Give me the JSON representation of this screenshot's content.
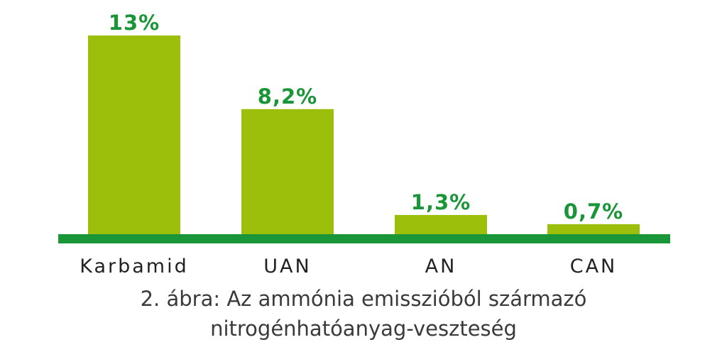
{
  "chart_data": {
    "type": "bar",
    "categories": [
      "Karbamid",
      "UAN",
      "AN",
      "CAN"
    ],
    "values": [
      13,
      8.2,
      1.3,
      0.7
    ],
    "value_labels": [
      "13%",
      "8,2%",
      "1,3%",
      "0,7%"
    ],
    "ylim": [
      0,
      13
    ],
    "grid": false,
    "legend": "none",
    "colors": {
      "bar": "#9bbf0a",
      "baseline": "#1a9638",
      "value_label": "#1a9638",
      "category_label": "#222222"
    }
  },
  "caption": {
    "line1": "2. ábra: Az ammónia emisszióból származó",
    "line2": "nitrogénhatóanyag-veszteség"
  }
}
